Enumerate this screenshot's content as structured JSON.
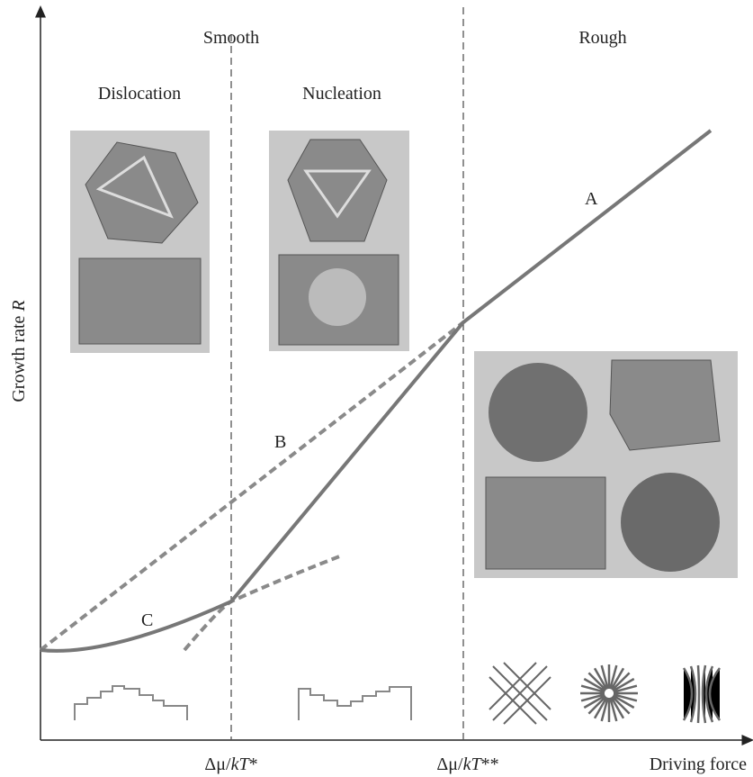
{
  "regions": {
    "smooth": "Smooth",
    "rough": "Rough",
    "dislocation": "Dislocation",
    "nucleation": "Nucleation"
  },
  "curves": {
    "a": "A",
    "b": "B",
    "c": "C"
  },
  "axes": {
    "y_label": {
      "text": "Growth rate",
      "variable": "R"
    },
    "x_label": "Driving force"
  },
  "thresholds": [
    {
      "prefix": "Δμ/",
      "italic": "kT",
      "suffix": "*"
    },
    {
      "prefix": "Δμ/",
      "italic": "kT",
      "suffix": "**"
    }
  ]
}
